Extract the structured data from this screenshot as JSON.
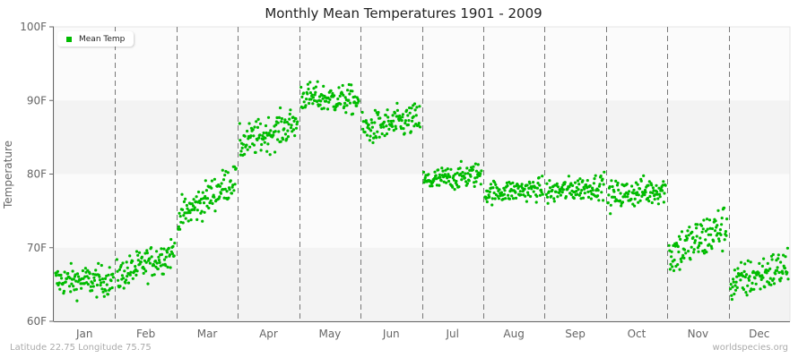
{
  "chart": {
    "title": "Monthly Mean Temperatures 1901 - 2009",
    "ylabel": "Temperature",
    "footer_left": "Latitude 22.75 Longitude 75.75",
    "footer_right": "worldspecies.org",
    "legend": {
      "label": "Mean Temp",
      "color": "#00bb00"
    },
    "colors": {
      "point": "#00bb00",
      "band_light": "#fbfbfb",
      "band_dark": "#f3f3f3",
      "axis": "#666666",
      "divider": "#777777"
    },
    "y_ticks": [
      "60F",
      "70F",
      "80F",
      "90F",
      "100F"
    ]
  },
  "chart_data": {
    "type": "scatter",
    "title": "Monthly Mean Temperatures 1901 - 2009",
    "xlabel": "",
    "ylabel": "Temperature",
    "ylim": [
      60,
      100
    ],
    "y_tick_values": [
      60,
      70,
      80,
      90,
      100
    ],
    "y_tick_labels": [
      "60F",
      "70F",
      "80F",
      "90F",
      "100F"
    ],
    "categories": [
      "Jan",
      "Feb",
      "Mar",
      "Apr",
      "May",
      "Jun",
      "Jul",
      "Aug",
      "Sep",
      "Oct",
      "Nov",
      "Dec"
    ],
    "legend": [
      "Mean Temp"
    ],
    "legend_position": "top-left",
    "grid": "alternating horizontal bands, dashed vertical month separators",
    "points_per_month": 109,
    "series": [
      {
        "name": "Mean Temp",
        "monthly_summary": [
          {
            "month": "Jan",
            "min": 61.0,
            "max": 68.5,
            "mean": 65.0,
            "start": 65.5,
            "end": 65.5
          },
          {
            "month": "Feb",
            "min": 64.5,
            "max": 72.5,
            "mean": 68.0,
            "start": 66.0,
            "end": 69.5
          },
          {
            "month": "Mar",
            "min": 72.5,
            "max": 81.0,
            "mean": 77.0,
            "start": 74.0,
            "end": 79.5
          },
          {
            "month": "Apr",
            "min": 80.5,
            "max": 89.0,
            "mean": 85.5,
            "start": 84.0,
            "end": 87.0
          },
          {
            "month": "May",
            "min": 86.5,
            "max": 93.5,
            "mean": 90.5,
            "start": 90.5,
            "end": 90.0
          },
          {
            "month": "Jun",
            "min": 83.0,
            "max": 91.0,
            "mean": 87.0,
            "start": 86.0,
            "end": 87.5
          },
          {
            "month": "Jul",
            "min": 77.5,
            "max": 83.5,
            "mean": 79.5,
            "start": 79.0,
            "end": 80.0
          },
          {
            "month": "Aug",
            "min": 75.5,
            "max": 81.0,
            "mean": 77.8,
            "start": 77.5,
            "end": 78.0
          },
          {
            "month": "Sep",
            "min": 75.5,
            "max": 81.5,
            "mean": 78.0,
            "start": 77.5,
            "end": 78.5
          },
          {
            "month": "Oct",
            "min": 74.0,
            "max": 81.0,
            "mean": 77.5,
            "start": 77.0,
            "end": 78.0
          },
          {
            "month": "Nov",
            "min": 64.5,
            "max": 76.0,
            "mean": 70.5,
            "start": 69.0,
            "end": 73.0
          },
          {
            "month": "Dec",
            "min": 61.5,
            "max": 71.0,
            "mean": 66.0,
            "start": 65.0,
            "end": 67.5
          }
        ]
      }
    ]
  }
}
